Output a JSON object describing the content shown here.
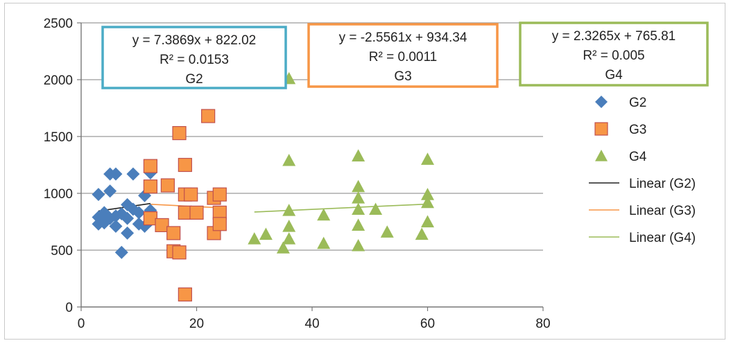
{
  "chart_data": {
    "type": "scatter",
    "xlim": [
      0,
      80
    ],
    "ylim": [
      0,
      2500
    ],
    "x_ticks": [
      "0",
      "20",
      "40",
      "60",
      "80"
    ],
    "y_ticks": [
      "0",
      "500",
      "1000",
      "1500",
      "2000",
      "2500"
    ],
    "grid": "horizontal",
    "legend_position": "right",
    "series": [
      {
        "name": "G2",
        "marker": "diamond",
        "color": "#4a7ebb",
        "points": [
          [
            3,
            990
          ],
          [
            5,
            1020
          ],
          [
            5,
            1170
          ],
          [
            6,
            1170
          ],
          [
            9,
            1170
          ],
          [
            12,
            1180
          ],
          [
            3,
            790
          ],
          [
            3,
            730
          ],
          [
            4,
            830
          ],
          [
            5,
            780
          ],
          [
            6,
            800
          ],
          [
            6,
            710
          ],
          [
            7,
            480
          ],
          [
            7,
            820
          ],
          [
            8,
            650
          ],
          [
            8,
            900
          ],
          [
            9,
            860
          ],
          [
            10,
            830
          ],
          [
            10,
            730
          ],
          [
            11,
            980
          ],
          [
            12,
            760
          ],
          [
            12,
            850
          ],
          [
            11,
            710
          ],
          [
            4,
            740
          ],
          [
            8,
            780
          ]
        ]
      },
      {
        "name": "G3",
        "marker": "square",
        "color": "#f79646",
        "points": [
          [
            12,
            1240
          ],
          [
            12,
            1060
          ],
          [
            12,
            780
          ],
          [
            14,
            720
          ],
          [
            15,
            1070
          ],
          [
            16,
            650
          ],
          [
            16,
            490
          ],
          [
            17,
            480
          ],
          [
            17,
            1530
          ],
          [
            18,
            1250
          ],
          [
            18,
            990
          ],
          [
            18,
            830
          ],
          [
            18,
            110
          ],
          [
            19,
            990
          ],
          [
            20,
            830
          ],
          [
            22,
            1680
          ],
          [
            23,
            960
          ],
          [
            23,
            650
          ],
          [
            24,
            990
          ],
          [
            24,
            830
          ],
          [
            24,
            730
          ]
        ]
      },
      {
        "name": "G4",
        "marker": "triangle",
        "color": "#9bbb59",
        "points": [
          [
            30,
            600
          ],
          [
            32,
            640
          ],
          [
            35,
            520
          ],
          [
            36,
            2010
          ],
          [
            36,
            1290
          ],
          [
            36,
            850
          ],
          [
            36,
            710
          ],
          [
            36,
            600
          ],
          [
            42,
            810
          ],
          [
            42,
            560
          ],
          [
            48,
            1330
          ],
          [
            48,
            1060
          ],
          [
            48,
            960
          ],
          [
            48,
            860
          ],
          [
            48,
            720
          ],
          [
            48,
            540
          ],
          [
            51,
            860
          ],
          [
            53,
            660
          ],
          [
            59,
            640
          ],
          [
            60,
            1300
          ],
          [
            60,
            990
          ],
          [
            60,
            920
          ],
          [
            60,
            750
          ]
        ]
      }
    ],
    "trendlines": [
      {
        "name": "Linear (G2)",
        "color": "#222222",
        "slope": 7.3869,
        "intercept": 822.02,
        "x_range": [
          3,
          12
        ]
      },
      {
        "name": "Linear (G3)",
        "color": "#f79646",
        "slope": -2.5561,
        "intercept": 934.34,
        "x_range": [
          12,
          24
        ]
      },
      {
        "name": "Linear (G4)",
        "color": "#9bbb59",
        "slope": 2.3265,
        "intercept": 765.81,
        "x_range": [
          30,
          60
        ]
      }
    ],
    "equation_boxes": [
      {
        "series": "G2",
        "color": "#4bacc6",
        "equation": "y = 7.3869x + 822.02",
        "r2": "R² = 0.0153",
        "label": "G2"
      },
      {
        "series": "G3",
        "color": "#f79646",
        "equation": "y = -2.5561x + 934.34",
        "r2": "R² = 0.0011",
        "label": "G3"
      },
      {
        "series": "G4",
        "color": "#9bbb59",
        "equation": "y = 2.3265x + 765.81",
        "r2": "R² = 0.005",
        "label": "G4"
      }
    ]
  }
}
